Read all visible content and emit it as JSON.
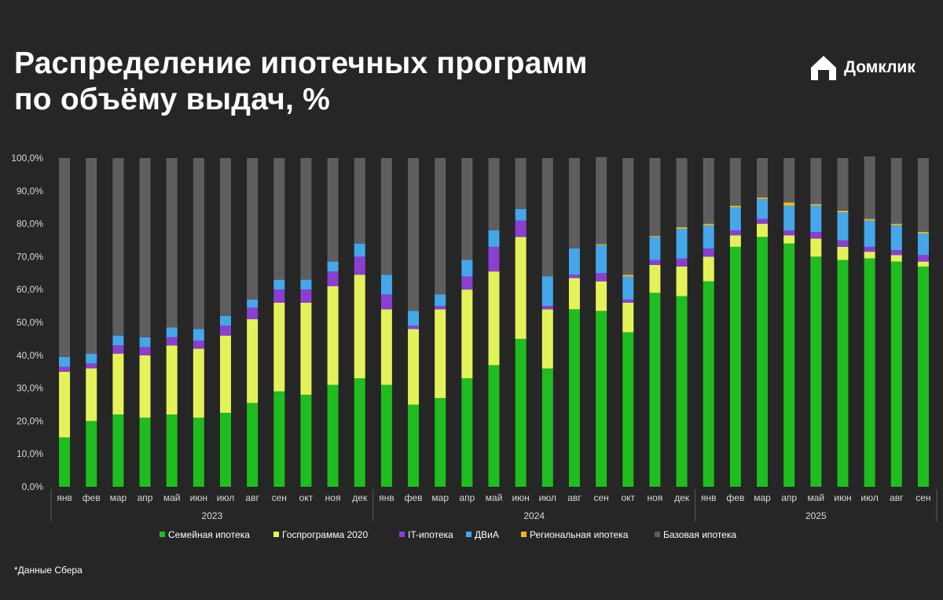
{
  "title_line1": "Распределение ипотечных программ",
  "title_line2": "по объёму выдач, %",
  "brand": "Домклик",
  "footnote": "*Данные Сбера",
  "chart_data": {
    "type": "bar",
    "stacked": true,
    "ylim": [
      0,
      100
    ],
    "yticks": [
      "0,0%",
      "10,0%",
      "20,0%",
      "30,0%",
      "40,0%",
      "50,0%",
      "60,0%",
      "70,0%",
      "80,0%",
      "90,0%",
      "100,0%"
    ],
    "categories": [
      "янв",
      "фев",
      "мар",
      "апр",
      "май",
      "июн",
      "июл",
      "авг",
      "сен",
      "окт",
      "ноя",
      "дек",
      "янв",
      "фев",
      "мар",
      "апр",
      "май",
      "июн",
      "июл",
      "авг",
      "сен",
      "окт",
      "ноя",
      "дек",
      "янв",
      "фев",
      "мар",
      "апр",
      "май",
      "июн",
      "июл",
      "авг",
      "сен"
    ],
    "year_groups": [
      {
        "label": "2023",
        "count": 12
      },
      {
        "label": "2024",
        "count": 12
      },
      {
        "label": "2025",
        "count": 9
      }
    ],
    "legend_position": "bottom",
    "series": [
      {
        "name": "Семейная ипотека",
        "color": "#1fbd1f",
        "values": [
          15,
          20,
          22,
          21,
          22,
          21,
          22.5,
          25.5,
          29,
          28,
          31,
          33,
          31,
          25,
          27,
          33,
          37,
          45,
          36,
          54,
          53.5,
          47,
          59,
          58,
          62.5,
          73,
          76,
          74,
          70,
          69,
          69.5,
          68.5,
          67
        ]
      },
      {
        "name": "Госпрограмма 2020",
        "color": "#e4f25a",
        "values": [
          20,
          16,
          18.5,
          19,
          21,
          21,
          23.5,
          25.5,
          27,
          28,
          30,
          31.5,
          23,
          23,
          27,
          27,
          28.5,
          31,
          18,
          9.5,
          9,
          9,
          8.5,
          9,
          7.5,
          3.5,
          4,
          2.5,
          5.5,
          4,
          2,
          2,
          1.5
        ]
      },
      {
        "name": "IT-ипотека",
        "color": "#8b3fd0",
        "values": [
          1.5,
          1.5,
          2.5,
          2.5,
          2.5,
          2.5,
          3,
          3.5,
          4,
          4,
          4.5,
          5.5,
          4.5,
          1,
          1,
          4,
          7.5,
          5,
          1,
          1,
          2.5,
          1,
          1.5,
          2.5,
          2.5,
          1.5,
          1.5,
          1.5,
          2,
          2,
          1.5,
          1.5,
          2
        ]
      },
      {
        "name": "ДВиА",
        "color": "#45a7ea",
        "values": [
          3,
          3,
          3,
          3,
          3,
          3.5,
          3,
          2.5,
          3,
          3,
          3,
          4,
          6,
          4.5,
          3.5,
          5,
          5,
          3.5,
          9,
          8,
          8.5,
          7,
          7,
          9,
          7,
          7,
          6,
          7.5,
          8,
          8.5,
          8,
          7.5,
          6.5
        ]
      },
      {
        "name": "Региональная ипотека",
        "color": "#f0b820",
        "values": [
          0,
          0,
          0,
          0,
          0,
          0,
          0,
          0,
          0,
          0,
          0,
          0,
          0,
          0,
          0,
          0,
          0,
          0,
          0,
          0,
          0.3,
          0.5,
          0.3,
          0.5,
          0.5,
          0.5,
          0.5,
          1,
          0.5,
          0.5,
          0.5,
          0.5,
          0.5
        ]
      },
      {
        "name": "Базовая ипотека",
        "color": "#5e5e5e",
        "values": [
          60.5,
          59.5,
          54,
          54.5,
          51.5,
          52,
          48,
          43,
          37,
          37,
          31.5,
          26,
          35.5,
          46.5,
          41.5,
          31,
          22,
          15.5,
          36,
          27.5,
          26.5,
          35.5,
          23.7,
          21,
          20,
          14.5,
          12,
          13.5,
          14,
          16,
          19,
          20,
          22.5
        ]
      }
    ]
  }
}
